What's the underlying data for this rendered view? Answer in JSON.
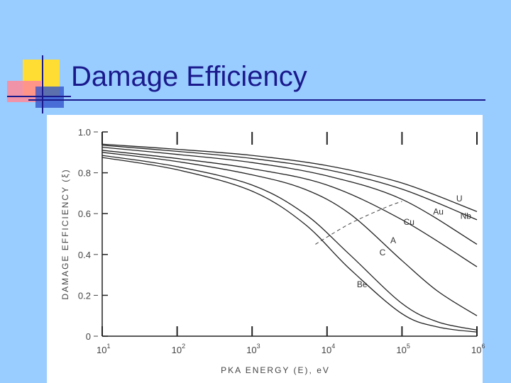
{
  "slide": {
    "title": "Damage Efficiency",
    "background": "#99ccff",
    "title_color": "#1a1a8c"
  },
  "chart_data": {
    "type": "line",
    "title": "",
    "xlabel": "PKA ENERGY (E), eV",
    "ylabel": "DAMAGE EFFICIENCY (ξ)",
    "x_scale": "log",
    "xlim": [
      10,
      1000000
    ],
    "ylim": [
      0,
      1.0
    ],
    "x_ticks": [
      10,
      100,
      1000,
      10000,
      100000,
      1000000
    ],
    "x_tick_labels": [
      {
        "base": "10",
        "exp": "1"
      },
      {
        "base": "10",
        "exp": "2"
      },
      {
        "base": "10",
        "exp": "3"
      },
      {
        "base": "10",
        "exp": "4"
      },
      {
        "base": "10",
        "exp": "5"
      },
      {
        "base": "10",
        "exp": "6"
      }
    ],
    "y_ticks": [
      0,
      0.2,
      0.4,
      0.6,
      0.8,
      1.0
    ],
    "y_tick_labels": [
      "0",
      "0.2",
      "0.4",
      "0.6",
      "0.8",
      "1.0"
    ],
    "grid": false,
    "legend": "none",
    "series": [
      {
        "name": "U",
        "x": [
          10,
          100,
          1000,
          10000,
          100000,
          1000000
        ],
        "y": [
          0.94,
          0.915,
          0.885,
          0.835,
          0.75,
          0.61
        ]
      },
      {
        "name": "Au",
        "x": [
          10,
          100,
          1000,
          10000,
          100000,
          1000000
        ],
        "y": [
          0.935,
          0.905,
          0.87,
          0.815,
          0.72,
          0.57
        ]
      },
      {
        "name": "Nb",
        "x": [
          10,
          100,
          1000,
          10000,
          100000,
          1000000
        ],
        "y": [
          0.925,
          0.89,
          0.85,
          0.785,
          0.67,
          0.45
        ]
      },
      {
        "name": "Cu",
        "x": [
          10,
          100,
          1000,
          10000,
          100000,
          1000000
        ],
        "y": [
          0.91,
          0.87,
          0.82,
          0.74,
          0.57,
          0.34
        ]
      },
      {
        "name": "A",
        "x": [
          10,
          100,
          1000,
          5000,
          20000,
          100000,
          300000,
          1000000
        ],
        "y": [
          0.9,
          0.855,
          0.79,
          0.72,
          0.6,
          0.37,
          0.22,
          0.1
        ]
      },
      {
        "name": "C",
        "x": [
          10,
          100,
          1000,
          5000,
          20000,
          100000,
          300000,
          1000000
        ],
        "y": [
          0.885,
          0.83,
          0.74,
          0.6,
          0.4,
          0.16,
          0.07,
          0.03
        ]
      },
      {
        "name": "Be",
        "x": [
          10,
          100,
          1000,
          5000,
          20000,
          100000,
          300000,
          1000000
        ],
        "y": [
          0.875,
          0.815,
          0.71,
          0.55,
          0.33,
          0.11,
          0.045,
          0.02
        ]
      }
    ],
    "reference_line": {
      "style": "dashed",
      "x": [
        7000,
        20000,
        60000,
        100000
      ],
      "y": [
        0.45,
        0.55,
        0.63,
        0.66
      ]
    }
  }
}
